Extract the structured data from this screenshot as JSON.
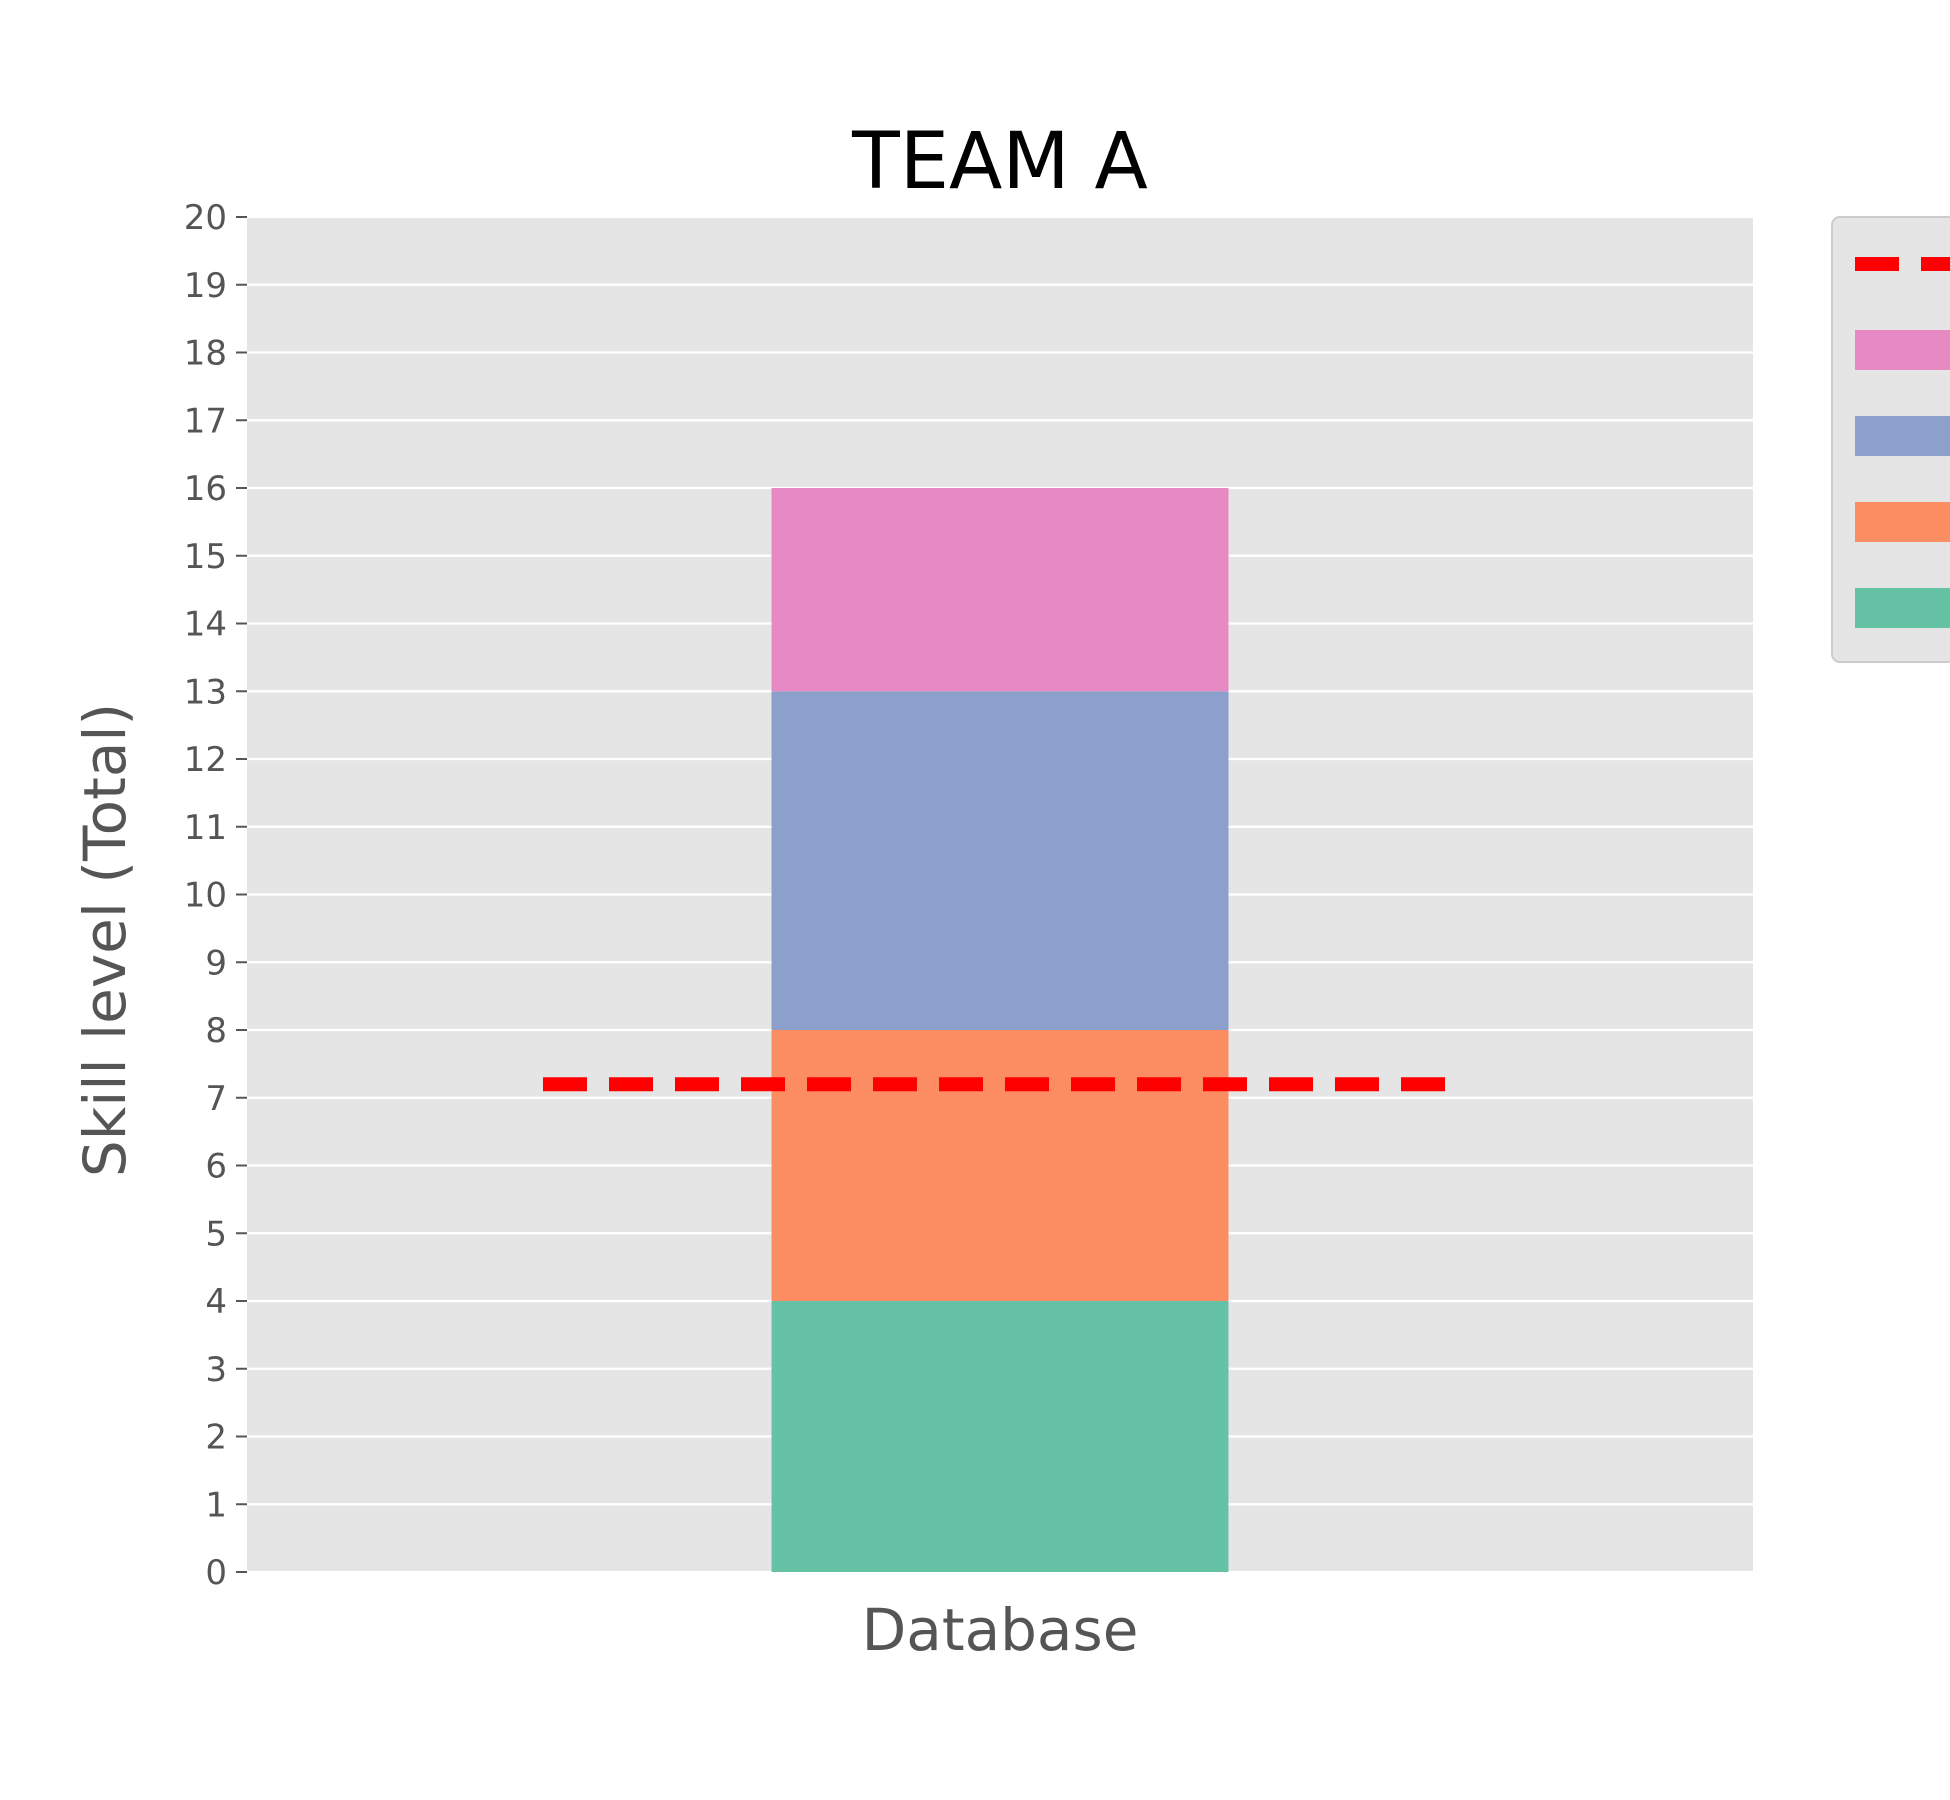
{
  "chart_data": {
    "type": "bar",
    "stacked": true,
    "title": "TEAM A",
    "xlabel": "",
    "ylabel": "Skill level (Total)",
    "categories": [
      "Database"
    ],
    "ylim": [
      0,
      20
    ],
    "yticks": [
      0,
      1,
      2,
      3,
      4,
      5,
      6,
      7,
      8,
      9,
      10,
      11,
      12,
      13,
      14,
      15,
      16,
      17,
      18,
      19,
      20
    ],
    "grid": true,
    "series": [
      {
        "values": [
          4
        ],
        "color": "#66c2a5"
      },
      {
        "values": [
          4
        ],
        "color": "#fc8d62"
      },
      {
        "values": [
          5
        ],
        "color": "#8da0cb"
      },
      {
        "values": [
          3
        ],
        "color": "#e78ac3"
      }
    ],
    "reference_line": {
      "y": 7.2,
      "color": "#ff0000",
      "style": "dashed"
    },
    "legend": {
      "placement": "outside-right-top",
      "entries": [
        {
          "kind": "line",
          "color": "#ff0000"
        },
        {
          "kind": "patch",
          "color": "#e78ac3"
        },
        {
          "kind": "patch",
          "color": "#8da0cb"
        },
        {
          "kind": "patch",
          "color": "#fc8d62"
        },
        {
          "kind": "patch",
          "color": "#66c2a5"
        }
      ]
    },
    "colors": {
      "plot_background": "#e5e5e5",
      "grid": "#ffffff",
      "tick": "#555555",
      "legend_background": "#e5e5e5",
      "legend_border": "#cccccc"
    }
  }
}
